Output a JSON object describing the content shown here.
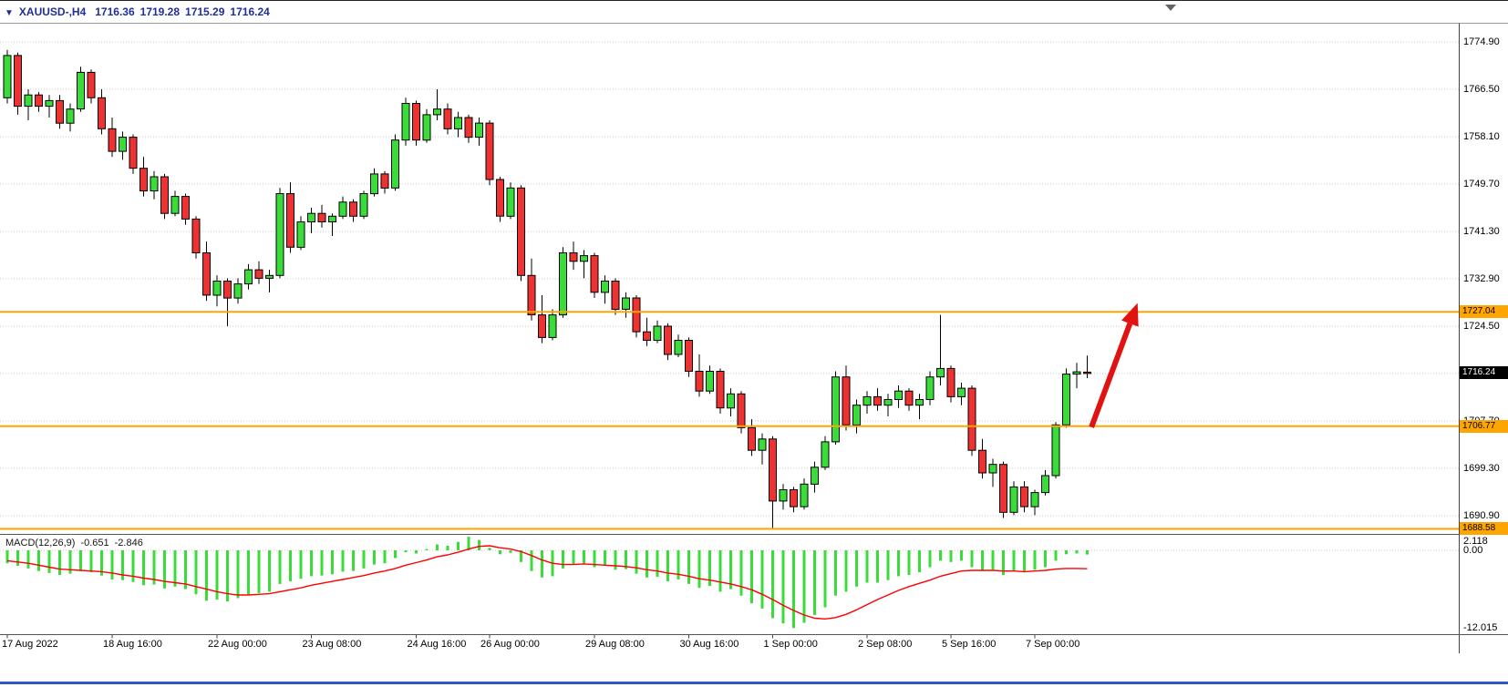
{
  "header": {
    "direction_icon": "▼",
    "symbol": "XAUUSD-,H4",
    "open": "1716.36",
    "high": "1719.28",
    "low": "1715.29",
    "close": "1716.24"
  },
  "y_axis": {
    "max": 1774.9,
    "min": 1690.9,
    "step": 8.4,
    "labels": [
      "1774.90",
      "1766.50",
      "1758.10",
      "1749.70",
      "1741.30",
      "1732.90",
      "1724.50",
      "1707.70",
      "1699.30",
      "1690.90"
    ]
  },
  "hlines": [
    {
      "price": 1727.04,
      "label": "1727.04",
      "color": "#FFA500"
    },
    {
      "price": 1706.77,
      "label": "1706.77",
      "color": "#FFA500"
    },
    {
      "price": 1688.58,
      "label": "1688.58",
      "color": "#FFA500"
    }
  ],
  "current_price": {
    "value": 1716.24,
    "label": "1716.24"
  },
  "time_axis": {
    "ticks": [
      {
        "bar": 0,
        "label": "17 Aug 2022"
      },
      {
        "bar": 10,
        "label": "18 Aug 16:00"
      },
      {
        "bar": 20,
        "label": "22 Aug 00:00"
      },
      {
        "bar": 29,
        "label": "23 Aug 08:00"
      },
      {
        "bar": 39,
        "label": "24 Aug 16:00"
      },
      {
        "bar": 46,
        "label": "26 Aug 00:00"
      },
      {
        "bar": 56,
        "label": "29 Aug 08:00"
      },
      {
        "bar": 65,
        "label": "30 Aug 16:00"
      },
      {
        "bar": 73,
        "label": "1 Sep 00:00"
      },
      {
        "bar": 82,
        "label": "2 Sep 08:00"
      },
      {
        "bar": 90,
        "label": "5 Sep 16:00"
      },
      {
        "bar": 98,
        "label": "7 Sep 00:00"
      }
    ]
  },
  "macd_panel": {
    "title": "MACD(12,26,9)",
    "value_main": "-0.651",
    "value_signal": "-2.846",
    "axis_labels": [
      {
        "value": 2.118,
        "label": "2.118"
      },
      {
        "value": 0,
        "label": "0.00"
      },
      {
        "value": -12.015,
        "label": "-12.015"
      }
    ]
  },
  "annotation_arrow": {
    "color": "#e11212",
    "from": {
      "bar": 103.4,
      "price": 1706.6
    },
    "to": {
      "bar": 107.8,
      "price": 1728.6
    }
  },
  "icons": {
    "price_direction": "triangle-down",
    "chart_shift_marker": "triangle-down"
  },
  "colors": {
    "bull": "#3adc3a",
    "bear": "#ee3232",
    "outline": "#000000",
    "grid": "#c9c9c9",
    "hline": "#FFA500",
    "histogram": "#3adc3a",
    "signal": "#ff0000",
    "header_text": "#1f2f9a",
    "accent_bottom": "#3355cc"
  },
  "chart_data": [
    {
      "type": "candlestick",
      "symbol": "XAUUSD-",
      "timeframe": "H4",
      "title": "XAUUSD- H4 price",
      "ylim": [
        1688.58,
        1778.0
      ],
      "ohlc": [
        [
          1765.0,
          1773.5,
          1764.0,
          1772.5
        ],
        [
          1772.5,
          1773.0,
          1762.0,
          1763.5
        ],
        [
          1763.5,
          1766.5,
          1761.0,
          1765.5
        ],
        [
          1765.5,
          1766.0,
          1762.5,
          1763.5
        ],
        [
          1763.5,
          1765.5,
          1761.5,
          1764.5
        ],
        [
          1764.5,
          1765.5,
          1759.5,
          1760.5
        ],
        [
          1760.5,
          1764.0,
          1759.0,
          1763.0
        ],
        [
          1763.0,
          1770.5,
          1762.5,
          1769.5
        ],
        [
          1769.5,
          1770.0,
          1764.0,
          1765.0
        ],
        [
          1765.0,
          1766.5,
          1758.5,
          1759.5
        ],
        [
          1759.5,
          1761.5,
          1754.5,
          1755.5
        ],
        [
          1755.5,
          1759.0,
          1754.0,
          1758.0
        ],
        [
          1758.0,
          1758.5,
          1751.5,
          1752.5
        ],
        [
          1752.5,
          1754.5,
          1747.5,
          1748.5
        ],
        [
          1748.5,
          1752.0,
          1747.0,
          1751.0
        ],
        [
          1751.0,
          1751.5,
          1743.5,
          1744.5
        ],
        [
          1744.5,
          1748.5,
          1744.0,
          1747.5
        ],
        [
          1747.5,
          1748.0,
          1742.5,
          1743.5
        ],
        [
          1743.5,
          1744.0,
          1736.5,
          1737.5
        ],
        [
          1737.5,
          1739.5,
          1729.0,
          1730.0
        ],
        [
          1730.0,
          1733.5,
          1728.0,
          1732.5
        ],
        [
          1732.5,
          1733.0,
          1724.5,
          1729.5
        ],
        [
          1729.5,
          1733.0,
          1728.5,
          1732.0
        ],
        [
          1732.0,
          1735.5,
          1731.0,
          1734.5
        ],
        [
          1734.5,
          1736.0,
          1732.0,
          1733.0
        ],
        [
          1733.0,
          1734.5,
          1730.5,
          1733.5
        ],
        [
          1733.5,
          1749.0,
          1733.0,
          1748.0
        ],
        [
          1748.0,
          1750.0,
          1737.5,
          1738.5
        ],
        [
          1738.5,
          1744.0,
          1738.0,
          1743.0
        ],
        [
          1743.0,
          1745.5,
          1741.0,
          1744.5
        ],
        [
          1744.5,
          1746.0,
          1742.0,
          1743.0
        ],
        [
          1743.0,
          1744.5,
          1740.5,
          1744.0
        ],
        [
          1744.0,
          1747.5,
          1743.5,
          1746.5
        ],
        [
          1746.5,
          1747.0,
          1743.0,
          1744.0
        ],
        [
          1744.0,
          1748.5,
          1743.5,
          1748.0
        ],
        [
          1748.0,
          1752.5,
          1747.5,
          1751.5
        ],
        [
          1751.5,
          1752.0,
          1748.0,
          1749.0
        ],
        [
          1749.0,
          1758.5,
          1748.5,
          1757.5
        ],
        [
          1757.5,
          1765.0,
          1756.5,
          1764.0
        ],
        [
          1764.0,
          1764.5,
          1756.5,
          1757.5
        ],
        [
          1757.5,
          1763.0,
          1757.0,
          1762.0
        ],
        [
          1762.0,
          1766.5,
          1761.0,
          1763.0
        ],
        [
          1763.0,
          1764.0,
          1758.5,
          1759.5
        ],
        [
          1759.5,
          1762.5,
          1758.0,
          1761.5
        ],
        [
          1761.5,
          1762.0,
          1757.0,
          1758.0
        ],
        [
          1758.0,
          1761.5,
          1756.5,
          1760.5
        ],
        [
          1760.5,
          1761.0,
          1749.5,
          1750.5
        ],
        [
          1750.5,
          1751.0,
          1743.0,
          1744.0
        ],
        [
          1744.0,
          1750.0,
          1743.5,
          1749.0
        ],
        [
          1749.0,
          1749.5,
          1732.5,
          1733.5
        ],
        [
          1733.5,
          1736.5,
          1725.5,
          1726.5
        ],
        [
          1726.5,
          1730.0,
          1721.5,
          1722.5
        ],
        [
          1722.5,
          1727.5,
          1722.0,
          1726.5
        ],
        [
          1726.5,
          1738.5,
          1726.0,
          1737.5
        ],
        [
          1737.5,
          1739.5,
          1734.5,
          1736.0
        ],
        [
          1736.0,
          1738.0,
          1733.0,
          1737.0
        ],
        [
          1737.0,
          1737.5,
          1729.5,
          1730.5
        ],
        [
          1730.5,
          1733.5,
          1728.5,
          1732.5
        ],
        [
          1732.5,
          1733.0,
          1726.5,
          1727.5
        ],
        [
          1727.5,
          1730.5,
          1726.0,
          1729.5
        ],
        [
          1729.5,
          1730.0,
          1722.5,
          1723.5
        ],
        [
          1723.5,
          1726.0,
          1721.0,
          1722.0
        ],
        [
          1722.0,
          1725.5,
          1721.5,
          1724.5
        ],
        [
          1724.5,
          1725.0,
          1718.5,
          1719.5
        ],
        [
          1719.5,
          1723.0,
          1719.0,
          1722.0
        ],
        [
          1722.0,
          1722.5,
          1715.5,
          1716.5
        ],
        [
          1716.5,
          1719.5,
          1712.0,
          1713.0
        ],
        [
          1713.0,
          1717.5,
          1712.5,
          1716.5
        ],
        [
          1716.5,
          1717.0,
          1709.0,
          1710.0
        ],
        [
          1710.0,
          1713.5,
          1708.5,
          1712.5
        ],
        [
          1712.5,
          1713.0,
          1705.5,
          1706.5
        ],
        [
          1706.5,
          1708.0,
          1701.5,
          1702.5
        ],
        [
          1702.5,
          1705.5,
          1700.0,
          1704.5
        ],
        [
          1704.5,
          1705.0,
          1688.5,
          1693.5
        ],
        [
          1693.5,
          1696.5,
          1692.0,
          1695.5
        ],
        [
          1695.5,
          1696.0,
          1691.5,
          1692.5
        ],
        [
          1692.5,
          1697.5,
          1692.0,
          1696.5
        ],
        [
          1696.5,
          1700.5,
          1695.0,
          1699.5
        ],
        [
          1699.5,
          1705.0,
          1699.0,
          1704.0
        ],
        [
          1704.0,
          1716.5,
          1703.5,
          1715.5
        ],
        [
          1715.5,
          1717.5,
          1706.0,
          1707.0
        ],
        [
          1707.0,
          1711.5,
          1705.5,
          1710.5
        ],
        [
          1710.5,
          1713.0,
          1709.0,
          1712.0
        ],
        [
          1712.0,
          1713.5,
          1709.5,
          1710.5
        ],
        [
          1710.5,
          1712.5,
          1708.5,
          1711.5
        ],
        [
          1711.5,
          1714.0,
          1710.0,
          1713.0
        ],
        [
          1713.0,
          1713.5,
          1709.5,
          1710.5
        ],
        [
          1710.5,
          1712.5,
          1708.0,
          1711.5
        ],
        [
          1711.5,
          1716.5,
          1710.5,
          1715.5
        ],
        [
          1715.5,
          1726.5,
          1714.0,
          1717.0
        ],
        [
          1717.0,
          1717.5,
          1711.0,
          1712.0
        ],
        [
          1712.0,
          1714.5,
          1710.5,
          1713.5
        ],
        [
          1713.5,
          1714.0,
          1701.5,
          1702.5
        ],
        [
          1702.5,
          1704.5,
          1697.5,
          1698.5
        ],
        [
          1698.5,
          1701.0,
          1696.0,
          1700.0
        ],
        [
          1700.0,
          1700.5,
          1690.5,
          1691.5
        ],
        [
          1691.5,
          1697.0,
          1691.0,
          1696.0
        ],
        [
          1696.0,
          1697.0,
          1691.5,
          1692.5
        ],
        [
          1692.5,
          1695.5,
          1691.0,
          1695.0
        ],
        [
          1695.0,
          1699.0,
          1694.5,
          1698.0
        ],
        [
          1698.0,
          1707.5,
          1697.5,
          1707.0
        ],
        [
          1707.0,
          1717.0,
          1706.5,
          1716.0
        ],
        [
          1716.0,
          1718.0,
          1713.5,
          1716.4
        ],
        [
          1716.36,
          1719.28,
          1715.29,
          1716.24
        ]
      ]
    },
    {
      "type": "bar",
      "name": "macd_histogram",
      "ylim": [
        -12.015,
        2.118
      ],
      "values": [
        -2.0,
        -2.4,
        -2.8,
        -3.2,
        -3.5,
        -3.8,
        -3.6,
        -3.2,
        -3.4,
        -3.9,
        -4.5,
        -4.6,
        -4.9,
        -5.4,
        -5.3,
        -5.9,
        -5.6,
        -6.0,
        -6.8,
        -7.8,
        -7.6,
        -7.9,
        -7.4,
        -6.8,
        -6.6,
        -6.4,
        -5.2,
        -4.8,
        -4.4,
        -4.0,
        -3.9,
        -3.7,
        -3.3,
        -3.2,
        -2.8,
        -2.2,
        -2.0,
        -1.2,
        -0.3,
        -0.5,
        0.2,
        0.9,
        0.7,
        1.3,
        2.1,
        1.6,
        0.4,
        -0.6,
        -0.4,
        -1.8,
        -3.2,
        -4.2,
        -4.0,
        -2.8,
        -2.2,
        -2.0,
        -2.6,
        -2.4,
        -3.0,
        -2.9,
        -3.6,
        -4.2,
        -4.1,
        -4.8,
        -4.5,
        -5.2,
        -5.8,
        -5.5,
        -6.4,
        -6.0,
        -7.0,
        -8.2,
        -9.0,
        -10.5,
        -11.3,
        -12.0,
        -11.2,
        -10.0,
        -8.8,
        -7.0,
        -6.4,
        -5.6,
        -5.0,
        -5.0,
        -4.6,
        -4.0,
        -3.8,
        -3.4,
        -2.6,
        -1.6,
        -1.8,
        -1.6,
        -2.6,
        -3.2,
        -3.0,
        -3.8,
        -3.2,
        -3.4,
        -3.0,
        -2.6,
        -1.6,
        -0.6,
        -0.5,
        -0.651
      ]
    },
    {
      "type": "line",
      "name": "macd_signal",
      "values": [
        -1.6,
        -1.8,
        -2.0,
        -2.3,
        -2.6,
        -2.9,
        -3.0,
        -3.1,
        -3.2,
        -3.3,
        -3.5,
        -3.8,
        -4.0,
        -4.3,
        -4.5,
        -4.8,
        -5.0,
        -5.2,
        -5.6,
        -6.0,
        -6.4,
        -6.7,
        -6.9,
        -6.9,
        -6.8,
        -6.7,
        -6.4,
        -6.1,
        -5.8,
        -5.4,
        -5.1,
        -4.8,
        -4.5,
        -4.2,
        -3.9,
        -3.5,
        -3.2,
        -2.8,
        -2.3,
        -1.9,
        -1.5,
        -1.0,
        -0.7,
        -0.3,
        0.2,
        0.6,
        0.7,
        0.4,
        0.2,
        -0.2,
        -0.8,
        -1.5,
        -2.0,
        -2.2,
        -2.2,
        -2.1,
        -2.2,
        -2.3,
        -2.4,
        -2.5,
        -2.7,
        -3.0,
        -3.2,
        -3.5,
        -3.7,
        -4.0,
        -4.4,
        -4.6,
        -4.9,
        -5.2,
        -5.6,
        -6.1,
        -6.8,
        -7.6,
        -8.5,
        -9.3,
        -10.0,
        -10.5,
        -10.6,
        -10.4,
        -9.9,
        -9.2,
        -8.4,
        -7.6,
        -6.9,
        -6.2,
        -5.6,
        -5.1,
        -4.6,
        -4.0,
        -3.6,
        -3.2,
        -3.1,
        -3.1,
        -3.1,
        -3.2,
        -3.2,
        -3.3,
        -3.2,
        -3.1,
        -2.9,
        -2.8,
        -2.8,
        -2.846
      ]
    }
  ]
}
